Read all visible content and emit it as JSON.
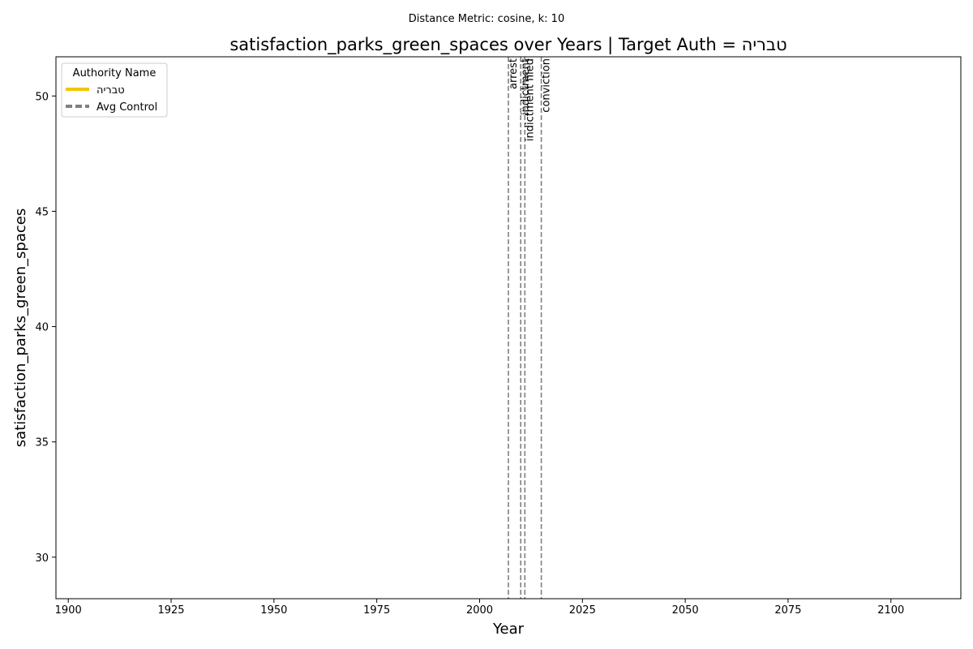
{
  "chart_data": {
    "type": "line",
    "subtitle": "Distance Metric: cosine, k: 10",
    "title": "satisfaction_parks_green_spaces over Years | Target Auth = טבריה",
    "xlabel": "Year",
    "ylabel": "satisfaction_parks_green_spaces",
    "xlim": [
      1897,
      2117
    ],
    "ylim": [
      28.2,
      51.7
    ],
    "x_ticks": [
      1900,
      1925,
      1950,
      1975,
      2000,
      2025,
      2050,
      2075,
      2100
    ],
    "y_ticks": [
      30,
      35,
      40,
      45,
      50
    ],
    "grid": false,
    "legend": {
      "title": "Authority Name",
      "placement": "top-left",
      "entries": [
        {
          "label": "טבריה",
          "color": "#f2c500",
          "style": "solid"
        },
        {
          "label": "Avg Control",
          "color": "#808080",
          "style": "dashed"
        }
      ]
    },
    "series": [
      {
        "name": "טבריה",
        "color": "#f2c500",
        "x": [],
        "y": []
      },
      {
        "name": "Avg Control",
        "color": "#808080",
        "x": [],
        "y": []
      }
    ],
    "events": [
      {
        "year": 2007,
        "label": "arrest"
      },
      {
        "year": 2010,
        "label": "indictment"
      },
      {
        "year": 2011,
        "label": "indictment filed"
      },
      {
        "year": 2015,
        "label": "conviction"
      }
    ],
    "event_line_color": "#808080"
  }
}
